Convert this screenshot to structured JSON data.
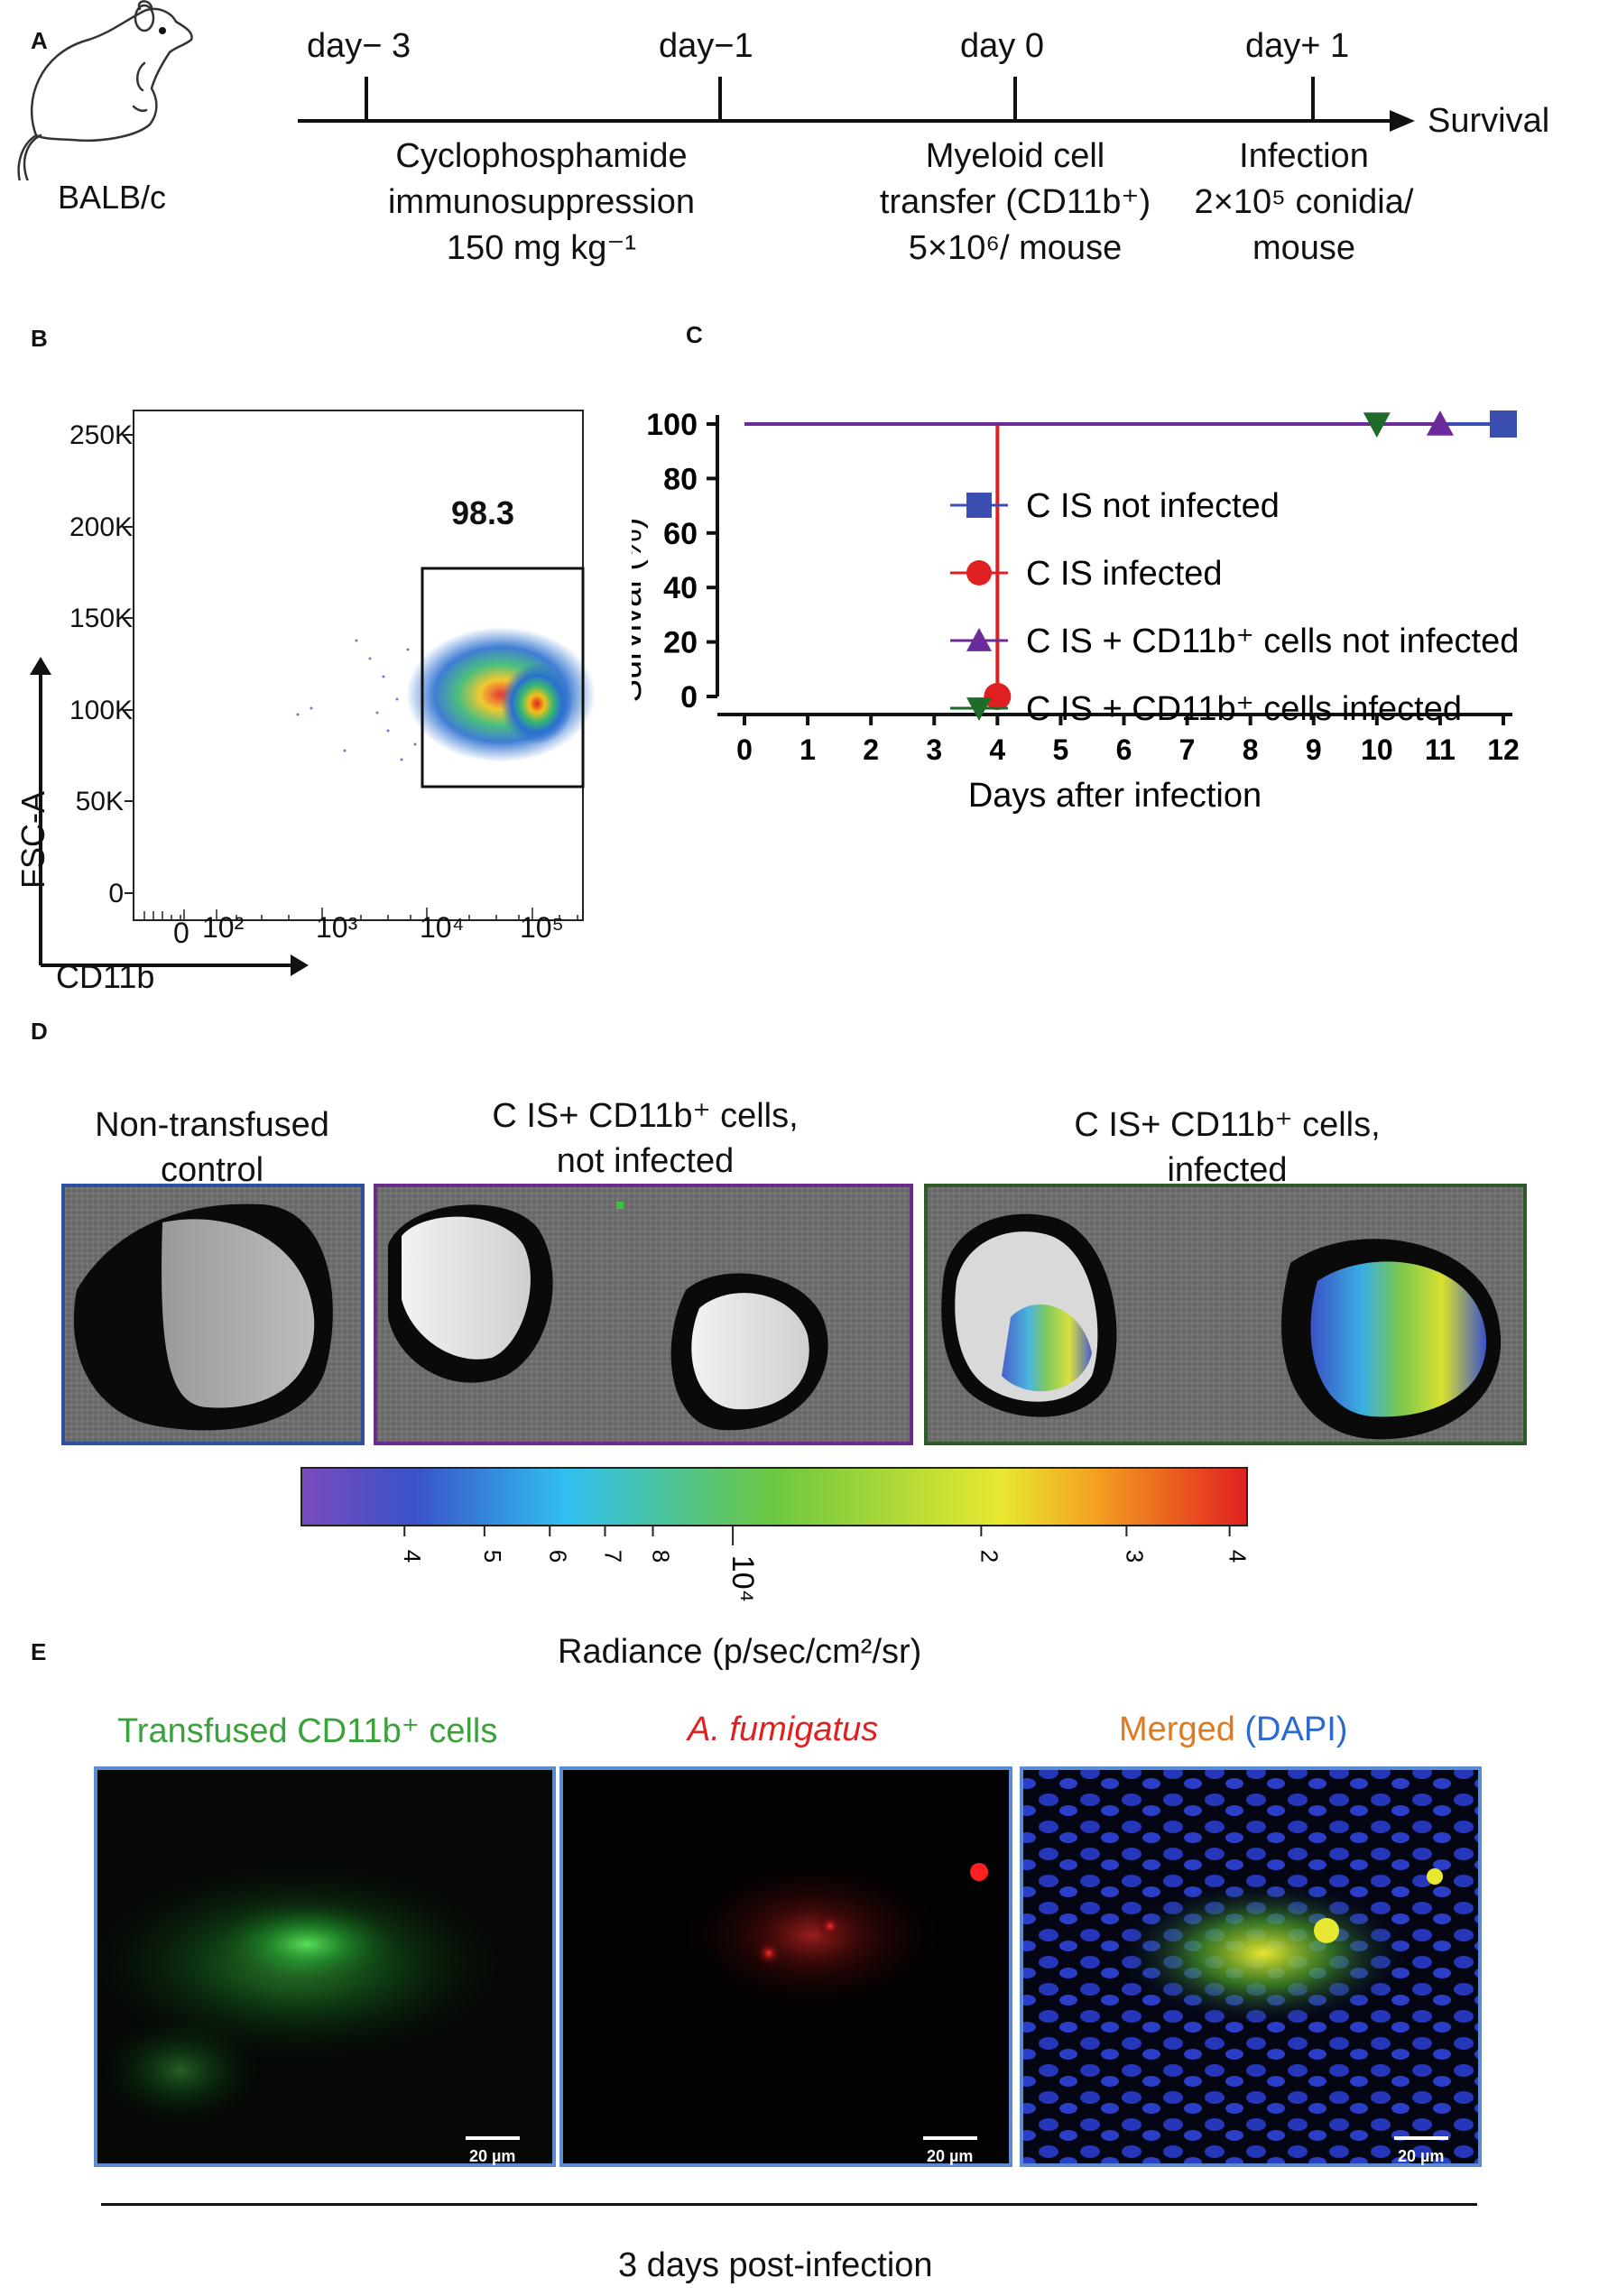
{
  "panels": {
    "a": "A",
    "b": "B",
    "c": "C",
    "d": "D",
    "e": "E"
  },
  "timeline": {
    "mouse_strain": "BALB/c",
    "ticks": [
      {
        "label": "day− 3",
        "desc": [
          "Cyclophosphamide",
          "immunosuppression",
          "150 mg kg⁻¹"
        ]
      },
      {
        "label": "day−1",
        "desc": []
      },
      {
        "label": "day 0",
        "desc": [
          "Myeloid cell",
          "transfer (CD11b⁺)",
          "5×10⁶/ mouse"
        ]
      },
      {
        "label": "day+ 1",
        "desc": [
          "Infection",
          "2×10⁵ conidia/",
          "mouse"
        ]
      }
    ],
    "end_label": "Survival"
  },
  "flow": {
    "y_axis_label": "FSC-A",
    "x_axis_label": "CD11b",
    "gate_value": "98.3",
    "y_ticks": [
      "250K",
      "200K",
      "150K",
      "100K",
      "50K",
      "0"
    ],
    "x_ticks": [
      "0",
      "10²",
      "10³",
      "10⁴",
      "10⁵"
    ]
  },
  "chart_data": {
    "type": "line",
    "title": "",
    "xlabel": "Days after infection",
    "ylabel": "Survival (%)",
    "xlim": [
      0,
      12
    ],
    "ylim": [
      0,
      100
    ],
    "x_ticks": [
      0,
      1,
      2,
      3,
      4,
      5,
      6,
      7,
      8,
      9,
      10,
      11,
      12
    ],
    "y_ticks": [
      0,
      20,
      40,
      60,
      80,
      100
    ],
    "legend_position": "center-right",
    "series": [
      {
        "name": "C IS not infected",
        "color": "#3a4fb0",
        "marker": "square",
        "x": [
          0,
          12
        ],
        "y": [
          100,
          100
        ]
      },
      {
        "name": "C IS infected",
        "color": "#e02020",
        "marker": "circle",
        "x": [
          0,
          4,
          4
        ],
        "y": [
          100,
          100,
          0
        ]
      },
      {
        "name": "C IS + CD11b⁺ cells not infected",
        "color": "#6a2c9a",
        "marker": "triangle-up",
        "x": [
          0,
          11
        ],
        "y": [
          100,
          100
        ]
      },
      {
        "name": "C IS + CD11b⁺ cells infected",
        "color": "#1e6b2a",
        "marker": "triangle-down",
        "x": [
          0,
          10
        ],
        "y": [
          100,
          100
        ]
      }
    ]
  },
  "imaging": {
    "group_labels": [
      [
        "Non-transfused",
        "control"
      ],
      [
        "C IS+ CD11b⁺  cells,",
        "not infected"
      ],
      [
        "C IS+ CD11b⁺  cells,",
        "infected"
      ]
    ],
    "frame_colors": [
      "#2f4fa0",
      "#6a2c8a",
      "#2f5a2a"
    ],
    "colorbar": {
      "ticks": [
        "4",
        "5",
        "6",
        "7",
        "8",
        "10⁴",
        "2",
        "3",
        "4"
      ],
      "label": "Radiance (p/sec/cm²/sr)"
    }
  },
  "microscopy": {
    "titles": [
      {
        "text": "Transfused CD11b⁺ cells",
        "color": "#3aa23a"
      },
      {
        "text": "A. fumigatus",
        "color": "#e02020"
      },
      {
        "text": "Merged",
        "color": "#e07a20"
      },
      {
        "text": "(DAPI)",
        "color": "#2a6ad0"
      }
    ],
    "scale_bar": "20 µm",
    "footer": "3 days post-infection"
  }
}
